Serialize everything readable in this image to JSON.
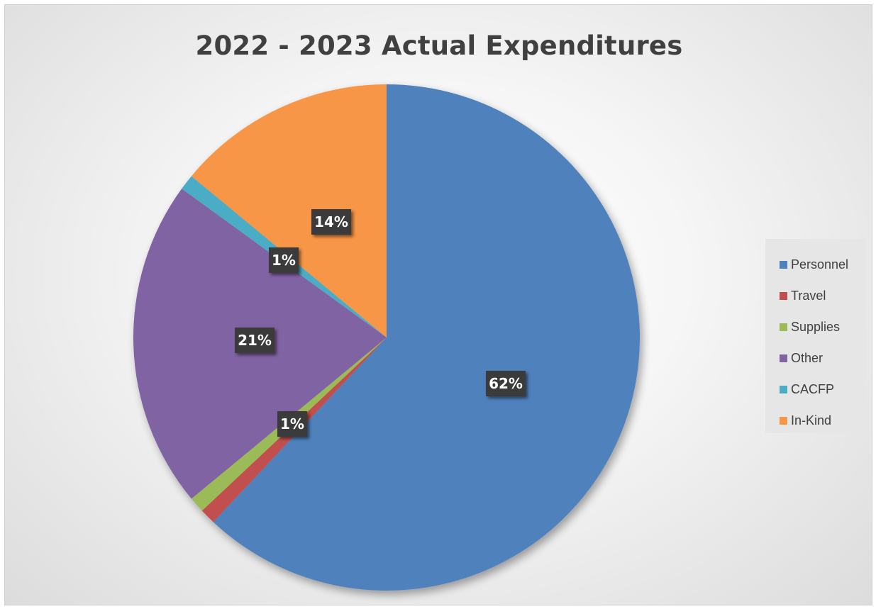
{
  "chart_data": {
    "type": "pie",
    "title": "2022 - 2023 Actual Expenditures",
    "categories": [
      "Personnel",
      "Travel",
      "Supplies",
      "Other",
      "CACFP",
      "In-Kind"
    ],
    "values": [
      62,
      1,
      1,
      21,
      1,
      14
    ],
    "data_labels": [
      "62%",
      "",
      "1%",
      "21%",
      "1%",
      "14%"
    ],
    "colors": [
      "#4f81bd",
      "#c0504d",
      "#9bbb59",
      "#8064a2",
      "#4bacc6",
      "#f79646"
    ],
    "legend_position": "right",
    "start_angle": "12 o'clock",
    "direction": "clockwise"
  }
}
